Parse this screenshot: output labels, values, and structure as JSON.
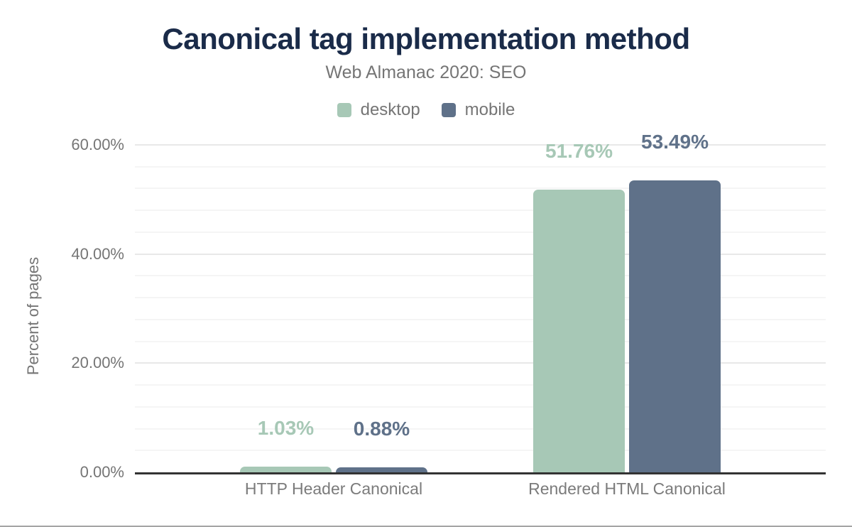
{
  "title": "Canonical tag implementation method",
  "subtitle": "Web Almanac 2020: SEO",
  "legend": {
    "items": [
      {
        "label": "desktop",
        "color": "#a7c8b6"
      },
      {
        "label": "mobile",
        "color": "#5f7189"
      }
    ]
  },
  "y_axis": {
    "title": "Percent of pages",
    "tick_labels_top_to_bottom": [
      "60.00%",
      "40.00%",
      "20.00%",
      "0.00%"
    ]
  },
  "x_axis": {
    "categories": [
      "HTTP Header Canonical",
      "Rendered HTML Canonical"
    ]
  },
  "chart_data": {
    "type": "bar",
    "title": "Canonical tag implementation method",
    "subtitle": "Web Almanac 2020: SEO",
    "categories": [
      "HTTP Header Canonical",
      "Rendered HTML Canonical"
    ],
    "series": [
      {
        "name": "desktop",
        "color": "#a7c8b6",
        "values": [
          1.03,
          51.76
        ],
        "data_labels": [
          "1.03%",
          "51.76%"
        ]
      },
      {
        "name": "mobile",
        "color": "#5f7189",
        "values": [
          0.88,
          53.49
        ],
        "data_labels": [
          "0.88%",
          "53.49%"
        ]
      }
    ],
    "xlabel": "",
    "ylabel": "Percent of pages",
    "ylim": [
      0,
      60
    ],
    "yticks": [
      0,
      20,
      40,
      60
    ],
    "ytick_labels": [
      "0.00%",
      "20.00%",
      "40.00%",
      "60.00%"
    ],
    "minor_grid_step_percent": 4,
    "grid": "horizontal",
    "legend_position": "top-center",
    "bar_corner_radius": "rounded-top",
    "data_label_position": "above-bar"
  }
}
